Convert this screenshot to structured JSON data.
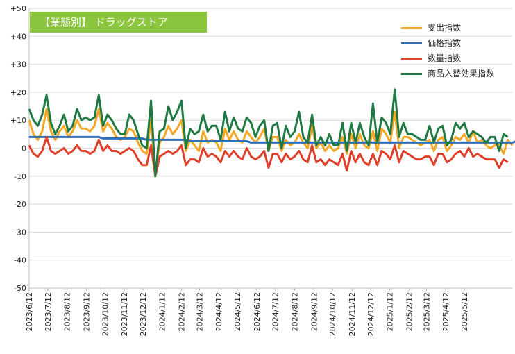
{
  "chart_data": {
    "type": "line",
    "title": "【業態別】 ドラッグストア",
    "ylim": [
      -50,
      50
    ],
    "yticks": [
      "+50",
      "+40",
      "+30",
      "+20",
      "+10",
      "0",
      "-10",
      "-20",
      "-30",
      "-40",
      "-50"
    ],
    "xtick_labels": [
      "2023/6/12",
      "2023/7/12",
      "2023/8/12",
      "2023/9/12",
      "2023/10/12",
      "2023/11/12",
      "2023/12/12",
      "2024/1/12",
      "2024/2/12",
      "2024/3/12",
      "2024/4/12",
      "2024/5/12",
      "2024/6/12",
      "2024/7/12",
      "2024/8/12",
      "2024/9/12",
      "2024/10/12",
      "2024/11/12",
      "2024/12/12",
      "2025/1/12",
      "2025/2/12",
      "2025/3/12",
      "2025/4/12",
      "2025/5/12"
    ],
    "x_start": "2023-06-12",
    "x_step_days": 7,
    "grid": "horizontal",
    "legend_position": "top-right",
    "series": [
      {
        "name": "支出指数",
        "color": "#f5a623",
        "values": [
          10,
          5,
          3,
          6,
          14,
          6,
          3,
          6,
          8,
          4,
          6,
          10,
          7,
          7,
          6,
          8,
          14,
          6,
          9,
          7,
          4,
          3,
          4,
          7,
          6,
          2,
          -1,
          -2,
          10,
          -9,
          2,
          4,
          8,
          5,
          7,
          10,
          -1,
          3,
          1,
          -1,
          6,
          2,
          3,
          2,
          -1,
          7,
          3,
          6,
          3,
          2,
          6,
          4,
          2,
          4,
          7,
          -1,
          4,
          4,
          -1,
          3,
          1,
          2,
          5,
          2,
          0,
          8,
          0,
          2,
          -1,
          1,
          -1,
          0,
          4,
          -2,
          5,
          0,
          5,
          1,
          0,
          6,
          -1,
          7,
          5,
          2,
          13,
          0,
          4,
          4,
          3,
          2,
          1,
          2,
          3,
          -1,
          3,
          4,
          -1,
          1,
          4,
          3,
          5,
          2,
          6,
          2,
          3,
          1,
          0,
          1,
          1,
          -2,
          3,
          1
        ]
      },
      {
        "name": "価格指数",
        "color": "#2e6fbd",
        "values": [
          4,
          4,
          4,
          4,
          4,
          4,
          4,
          4,
          4,
          4,
          4,
          4,
          4,
          4,
          4,
          4,
          4,
          3.5,
          3.5,
          3.5,
          3.5,
          3.5,
          3.5,
          3.5,
          3.5,
          3.5,
          3.5,
          3,
          3,
          3,
          3,
          3,
          3,
          3,
          3,
          3,
          3,
          2.5,
          2.5,
          2.5,
          2.5,
          2.5,
          2.5,
          2.5,
          2.5,
          2.5,
          2.5,
          2.5,
          2.5,
          2.5,
          2.5,
          2,
          2,
          2,
          2,
          2,
          2,
          2,
          2,
          2,
          2,
          2,
          2,
          2,
          2,
          2,
          2,
          2,
          2,
          2,
          2,
          2,
          2,
          2,
          2,
          2,
          2,
          2,
          2,
          2,
          2,
          2,
          2,
          2,
          2,
          2,
          2,
          2,
          2,
          2,
          2,
          2,
          2,
          2,
          2,
          2,
          2,
          2,
          2,
          2,
          2,
          2,
          2,
          2,
          2,
          2,
          2,
          2,
          2,
          2,
          2,
          2,
          2.5
        ]
      },
      {
        "name": "数量指数",
        "color": "#e0402a",
        "values": [
          1,
          -2,
          -3,
          -1,
          4,
          -1,
          -2,
          -1,
          0,
          -2,
          -1,
          1,
          -1,
          -1,
          -2,
          -1,
          3,
          -1,
          1,
          -1,
          -1,
          -2,
          -1,
          0,
          -1,
          -4,
          -6,
          -6,
          1,
          -10,
          -3,
          -2,
          -1,
          -2,
          -1,
          1,
          -6,
          -4,
          -4,
          -5,
          0,
          -3,
          -2,
          -3,
          -5,
          -1,
          -3,
          -1,
          -3,
          -4,
          0,
          -3,
          -4,
          -3,
          -1,
          -7,
          -2,
          -2,
          -5,
          -2,
          -4,
          -3,
          -1,
          -4,
          -5,
          1,
          -5,
          -4,
          -6,
          -4,
          -5,
          -6,
          -2,
          -8,
          -1,
          -5,
          -2,
          -5,
          -6,
          -2,
          -6,
          -1,
          -2,
          -4,
          1,
          -5,
          -1,
          -2,
          -3,
          -4,
          -4,
          -3,
          -3,
          -6,
          -2,
          -2,
          -5,
          -4,
          -2,
          -1,
          -3,
          0,
          -3,
          -2,
          -3,
          -4,
          -4,
          -4,
          -7,
          -4,
          -5
        ]
      },
      {
        "name": "商品入替効果指数",
        "color": "#1e7a42",
        "values": [
          14,
          10,
          8,
          12,
          19,
          9,
          5,
          8,
          12,
          6,
          8,
          14,
          10,
          11,
          10,
          11,
          19,
          8,
          12,
          10,
          7,
          5,
          5,
          12,
          10,
          5,
          1,
          0,
          17,
          -10,
          6,
          7,
          15,
          10,
          13,
          17,
          0,
          7,
          5,
          6,
          12,
          6,
          8,
          8,
          3,
          13,
          6,
          11,
          7,
          6,
          11,
          9,
          4,
          8,
          10,
          -1,
          8,
          9,
          0,
          8,
          4,
          6,
          13,
          4,
          2,
          12,
          1,
          4,
          1,
          5,
          1,
          1,
          9,
          -1,
          9,
          2,
          9,
          4,
          1,
          16,
          2,
          11,
          9,
          5,
          21,
          4,
          9,
          5,
          5,
          4,
          3,
          3,
          8,
          2,
          7,
          8,
          1,
          3,
          9,
          7,
          9,
          4,
          6,
          5,
          4,
          2,
          4,
          4,
          -1,
          5,
          4
        ]
      }
    ]
  }
}
